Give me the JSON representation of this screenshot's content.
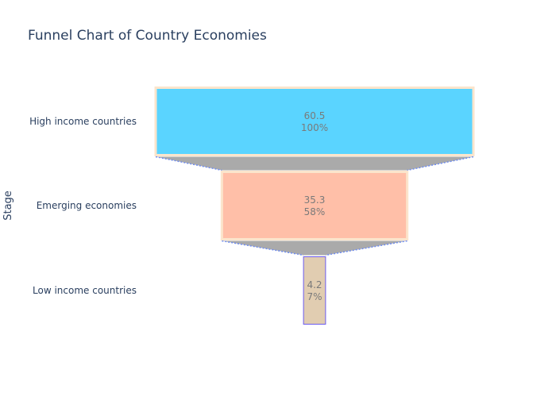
{
  "chart_data": {
    "type": "funnel",
    "title": "Funnel Chart of Country Economies",
    "ylabel": "Stage",
    "categories": [
      "High income countries",
      "Emerging economies",
      "Low income countries"
    ],
    "values": [
      60.5,
      35.3,
      4.2
    ],
    "percent_initial": [
      "100%",
      "58%",
      "7%"
    ],
    "value_labels": [
      "60.5",
      "35.3",
      "4.2"
    ],
    "colors": {
      "fills": [
        "#5ad4ff",
        "#ffbfa8",
        "#e1cdb1"
      ],
      "outlines": [
        "#fbe5cc",
        "#fbe5cc",
        "#6b5cf0"
      ],
      "connector_fill": "#aaaaaa",
      "connector_line": "#6f8cef",
      "title": "#2a3f5f",
      "axis_label": "#2a3f5f",
      "tick_label": "#2a3f5f",
      "inside_text": "#7a7a7a"
    }
  }
}
